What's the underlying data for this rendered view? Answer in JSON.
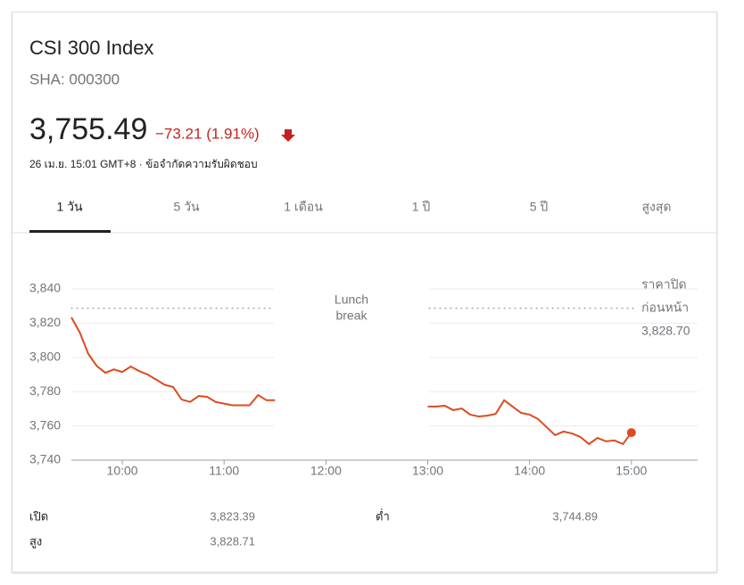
{
  "header": {
    "title": "CSI 300 Index",
    "ticker": "SHA: 000300",
    "price": "3,755.49",
    "change": "−73.21 (1.91%)",
    "timestamp": "26 เม.ย. 15:01 GMT+8 · ข้อจำกัดความรับผิดชอบ"
  },
  "tabs": [
    "1 วัน",
    "5 วัน",
    "1 เดือน",
    "1 ปี",
    "5 ปี",
    "สูงสุด"
  ],
  "chart_data": {
    "type": "line",
    "lunch_label": [
      "Lunch",
      "break"
    ],
    "previous_close_label": [
      "ราคาปิด",
      "ก่อนหน้า"
    ],
    "previous_close": {
      "value": 3828.7,
      "label": "3,828.70"
    },
    "x": [
      570,
      575,
      580,
      585,
      590,
      595,
      600,
      605,
      610,
      615,
      620,
      625,
      630,
      635,
      640,
      645,
      650,
      655,
      660,
      665,
      670,
      675,
      680,
      685,
      690,
      750,
      780,
      785,
      790,
      795,
      800,
      805,
      810,
      815,
      820,
      825,
      830,
      835,
      840,
      845,
      850,
      855,
      860,
      865,
      870,
      875,
      880,
      885,
      890,
      895,
      900
    ],
    "series": [
      {
        "color": "#dd4b1f",
        "values": [
          3823.4,
          3814.5,
          3802,
          3795,
          3791,
          3793,
          3791.5,
          3794.7,
          3792,
          3790,
          3787,
          3784,
          3782.7,
          3775.4,
          3774,
          3777.5,
          3777,
          3774,
          3773,
          3772,
          3772,
          3772,
          3778,
          3775,
          3775,
          null,
          3771.3,
          3771.3,
          3771.8,
          3769.2,
          3770.2,
          3766.6,
          3765.5,
          3766,
          3767,
          3775,
          3771.3,
          3767.6,
          3766.6,
          3764,
          3759.3,
          3754.6,
          3756.7,
          3755.6,
          3753.5,
          3749.4,
          3753,
          3751,
          3751.5,
          3749.4,
          3756.1
        ]
      }
    ],
    "xlim": [
      570,
      939
    ],
    "ylim": [
      3740,
      3840
    ],
    "xticks": [
      {
        "value": 600,
        "label": "10:00"
      },
      {
        "value": 660,
        "label": "11:00"
      },
      {
        "value": 720,
        "label": "12:00"
      },
      {
        "value": 780,
        "label": "13:00"
      },
      {
        "value": 840,
        "label": "14:00"
      },
      {
        "value": 900,
        "label": "15:00"
      }
    ],
    "yticks": [
      {
        "value": 3740,
        "label": "3,740"
      },
      {
        "value": 3760,
        "label": "3,760"
      },
      {
        "value": 3780,
        "label": "3,780"
      },
      {
        "value": 3800,
        "label": "3,800"
      },
      {
        "value": 3820,
        "label": "3,820"
      },
      {
        "value": 3840,
        "label": "3,840"
      }
    ],
    "grid": true
  },
  "stats": [
    {
      "label": "เปิด",
      "value": "3,823.39"
    },
    {
      "label": "ต่ำ",
      "value": "3,744.89"
    },
    {
      "label": "สูง",
      "value": "3,828.71"
    }
  ]
}
